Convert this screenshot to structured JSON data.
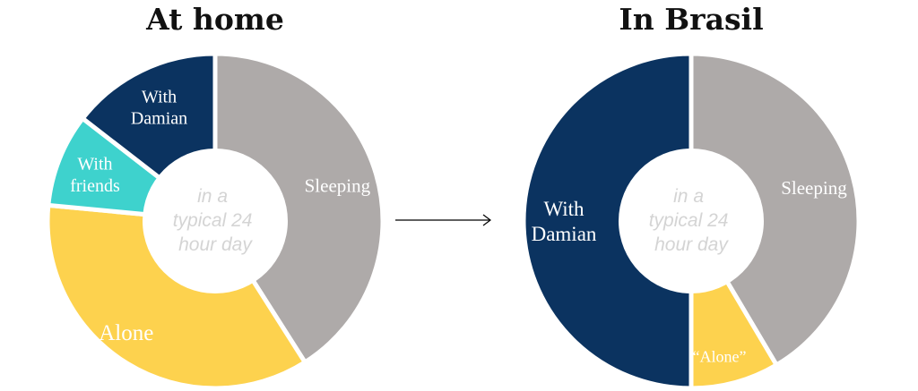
{
  "chart_data": [
    {
      "type": "pie",
      "title": "At home",
      "center_label": [
        "in a",
        "typical 24",
        "hour day"
      ],
      "hole": true,
      "slices": [
        {
          "label": [
            "Sleeping"
          ],
          "value": 0.41,
          "color": "#aeaaa9"
        },
        {
          "label": [
            "Alone"
          ],
          "value": 0.355,
          "color": "#fdd24e"
        },
        {
          "label": [
            "With",
            "friends"
          ],
          "value": 0.09,
          "color": "#3ed2cd"
        },
        {
          "label": [
            "With",
            "Damian"
          ],
          "value": 0.145,
          "color": "#0b3360"
        }
      ]
    },
    {
      "type": "pie",
      "title": "In Brasil",
      "center_label": [
        "in a",
        "typical 24",
        "hour day"
      ],
      "hole": true,
      "slices": [
        {
          "label": [
            "Sleeping"
          ],
          "value": 0.415,
          "color": "#aeaaa9"
        },
        {
          "label": [
            "“Alone”"
          ],
          "value": 0.085,
          "color": "#fdd24e"
        },
        {
          "label": [
            "With",
            "Damian"
          ],
          "value": 0.5,
          "color": "#0b3360"
        }
      ]
    }
  ],
  "arrow": {
    "icon": "right-arrow-icon",
    "color": "#000000"
  }
}
